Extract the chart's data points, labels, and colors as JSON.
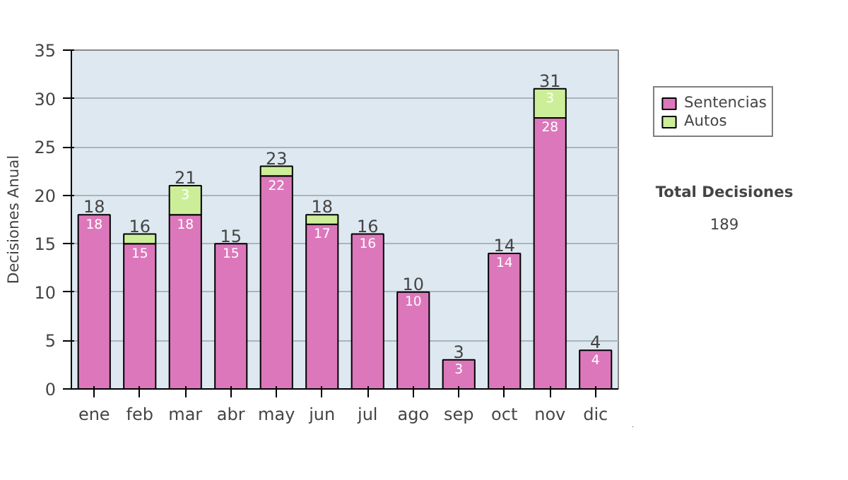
{
  "chart_data": {
    "type": "bar",
    "stacked": true,
    "ylabel": "Decisiones Anual",
    "categories": [
      "ene",
      "feb",
      "mar",
      "abr",
      "may",
      "jun",
      "jul",
      "ago",
      "sep",
      "oct",
      "nov",
      "dic"
    ],
    "series": [
      {
        "name": "Sentencias",
        "color": "#dd77bb",
        "values": [
          18,
          15,
          18,
          15,
          22,
          17,
          16,
          10,
          3,
          14,
          28,
          4
        ],
        "value_labels": [
          "18",
          "15",
          "18",
          "15",
          "22",
          "17",
          "16",
          "10",
          "3",
          "14",
          "28",
          "4"
        ]
      },
      {
        "name": "Autos",
        "color": "#ccee99",
        "values": [
          0,
          1,
          3,
          0,
          1,
          1,
          0,
          0,
          0,
          0,
          3,
          0
        ],
        "value_labels": [
          null,
          null,
          "3",
          null,
          null,
          null,
          null,
          null,
          null,
          null,
          "3",
          null
        ]
      }
    ],
    "totals": [
      "18",
      "16",
      "21",
      "15",
      "23",
      "18",
      "16",
      "10",
      "3",
      "14",
      "31",
      "4"
    ],
    "ylim": [
      0,
      35
    ],
    "yticks": [
      0,
      5,
      10,
      15,
      20,
      25,
      30,
      35
    ],
    "grid": "y",
    "legend": "right",
    "annotations": [
      "Total Decisiones",
      "189"
    ]
  }
}
